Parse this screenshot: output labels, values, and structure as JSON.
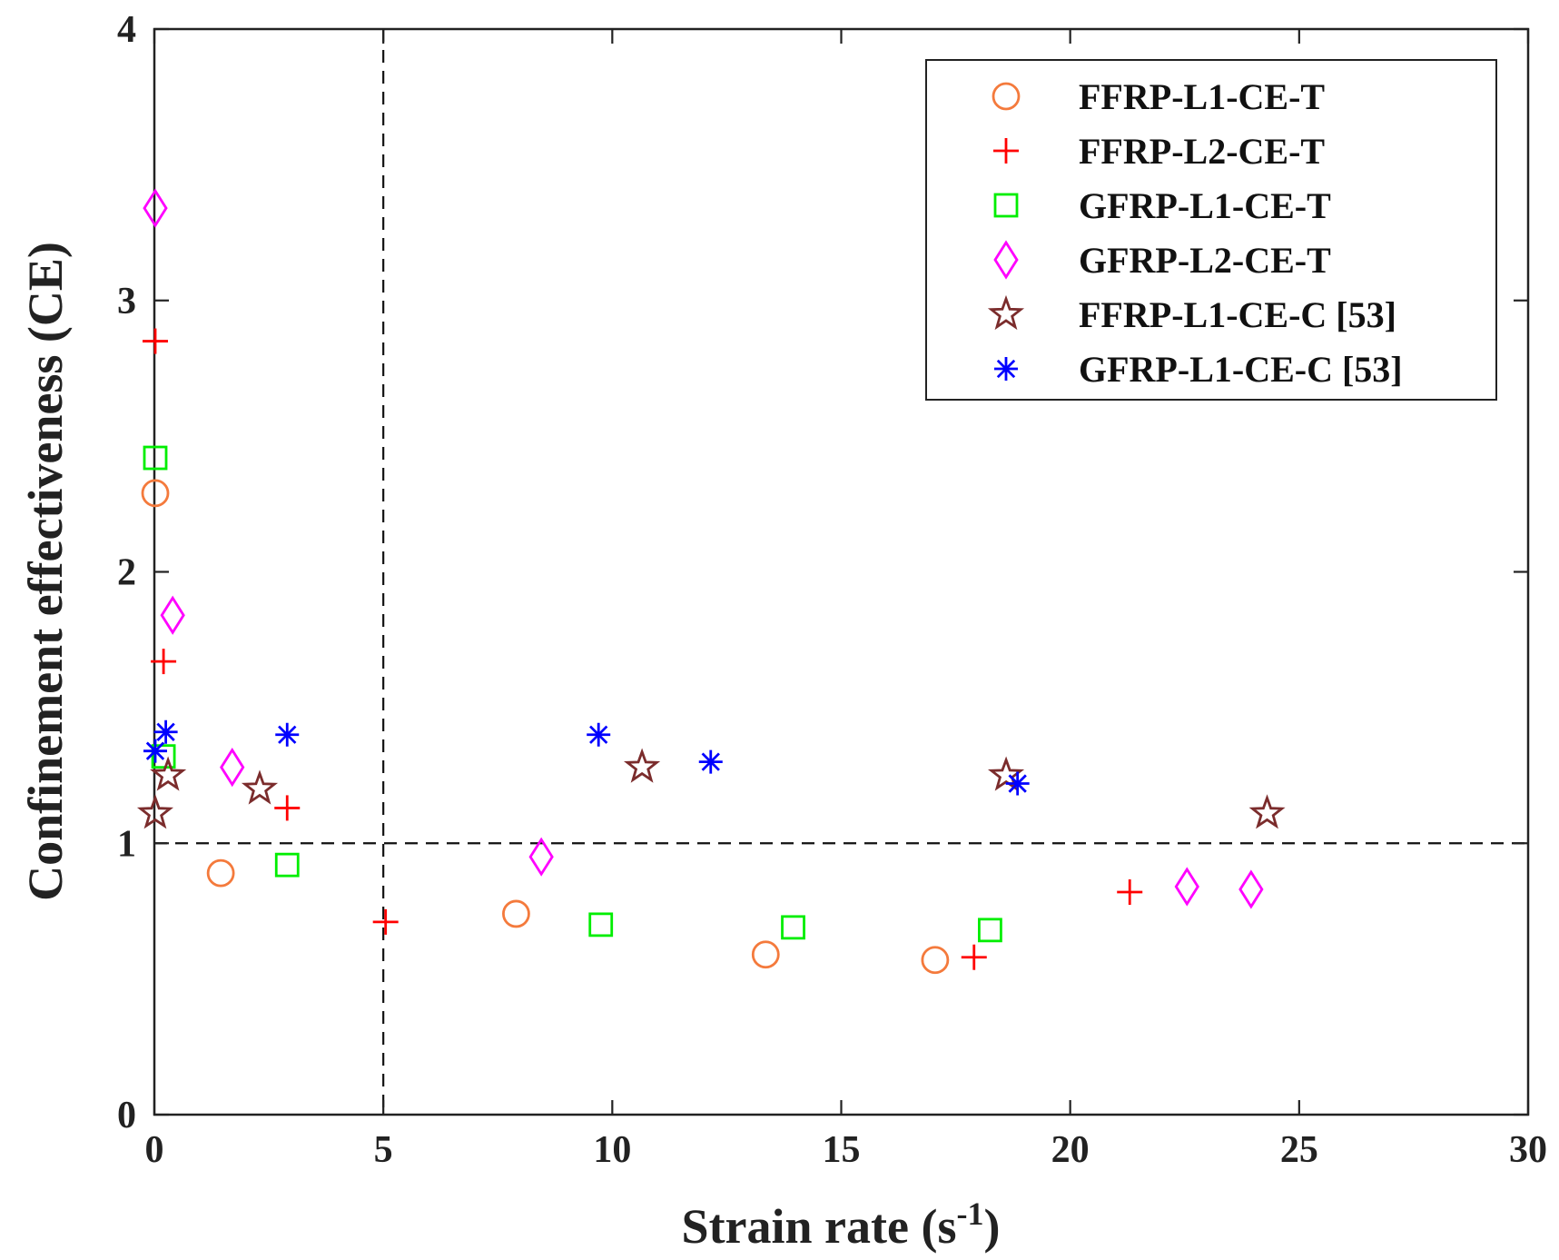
{
  "chart_data": {
    "type": "scatter",
    "title": "",
    "xlabel": "Strain rate (s",
    "xlabel_sup": "-1",
    "xlabel_close": ")",
    "ylabel": "Confinement effectiveness (CE)",
    "xlim": [
      0,
      30
    ],
    "ylim": [
      0,
      4
    ],
    "xticks": [
      0,
      5,
      10,
      15,
      20,
      25,
      30
    ],
    "yticks": [
      0,
      1,
      2,
      3,
      4
    ],
    "xtick_labels": [
      "0",
      "5",
      "10",
      "15",
      "20",
      "25",
      "30"
    ],
    "ytick_labels": [
      "0",
      "1",
      "2",
      "3",
      "4"
    ],
    "grid": false,
    "legend_position": "top-right",
    "reference_lines": [
      {
        "orientation": "vertical",
        "value": 5,
        "style": "dashed"
      },
      {
        "orientation": "horizontal",
        "value": 1,
        "style": "dashed"
      }
    ],
    "series": [
      {
        "name": "FFRP-L1-CE-T",
        "marker": "circle",
        "color": "#f47a3c",
        "points": [
          [
            0.02,
            2.29
          ],
          [
            1.45,
            0.89
          ],
          [
            7.9,
            0.74
          ],
          [
            13.35,
            0.59
          ],
          [
            17.05,
            0.57
          ]
        ]
      },
      {
        "name": "FFRP-L2-CE-T",
        "marker": "plus",
        "color": "#ff0000",
        "points": [
          [
            0.02,
            2.85
          ],
          [
            0.2,
            1.67
          ],
          [
            2.9,
            1.13
          ],
          [
            5.05,
            0.71
          ],
          [
            17.9,
            0.58
          ],
          [
            21.3,
            0.82
          ]
        ]
      },
      {
        "name": "GFRP-L1-CE-T",
        "marker": "square",
        "color": "#00ee00",
        "points": [
          [
            0.02,
            2.42
          ],
          [
            0.2,
            1.32
          ],
          [
            2.9,
            0.92
          ],
          [
            9.75,
            0.7
          ],
          [
            13.95,
            0.69
          ],
          [
            18.25,
            0.68
          ]
        ]
      },
      {
        "name": "GFRP-L2-CE-T",
        "marker": "diamond",
        "color": "#ff00ff",
        "points": [
          [
            0.02,
            3.34
          ],
          [
            0.4,
            1.84
          ],
          [
            1.7,
            1.28
          ],
          [
            8.45,
            0.95
          ],
          [
            22.55,
            0.84
          ],
          [
            23.95,
            0.83
          ]
        ]
      },
      {
        "name": "FFRP-L1-CE-C [53]",
        "marker": "star",
        "color": "#7b2c2c",
        "points": [
          [
            0.02,
            1.11
          ],
          [
            0.3,
            1.25
          ],
          [
            2.3,
            1.2
          ],
          [
            10.65,
            1.28
          ],
          [
            18.6,
            1.25
          ],
          [
            24.3,
            1.11
          ]
        ]
      },
      {
        "name": "GFRP-L1-CE-C [53]",
        "marker": "asterisk",
        "color": "#0000ff",
        "points": [
          [
            0.02,
            1.34
          ],
          [
            0.25,
            1.41
          ],
          [
            2.9,
            1.4
          ],
          [
            9.7,
            1.4
          ],
          [
            12.15,
            1.3
          ],
          [
            18.85,
            1.22
          ]
        ]
      }
    ]
  }
}
